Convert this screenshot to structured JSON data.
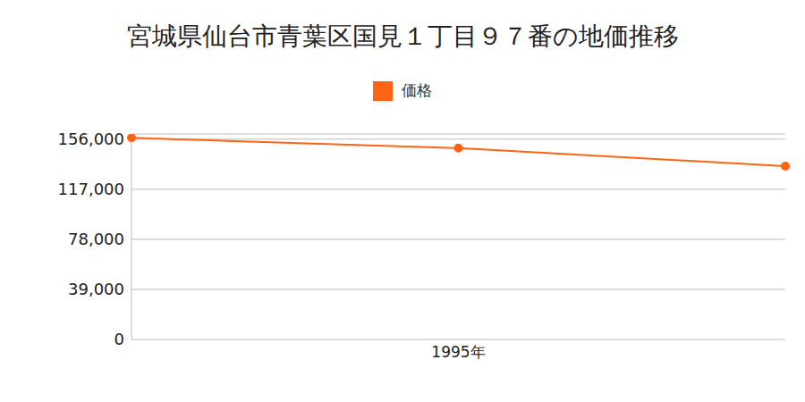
{
  "chart_data": {
    "type": "line",
    "title": "宮城県仙台市青葉区国見１丁目９７番の地価推移",
    "categories": [
      null,
      "1995年",
      null
    ],
    "series": [
      {
        "name": "価格",
        "color": "#ff6314",
        "values": [
          157000,
          149000,
          135000
        ],
        "marker": "circle"
      }
    ],
    "ylim": [
      0,
      160000
    ],
    "yticks": [
      0,
      {
        "value": 39000,
        "label": "39,000"
      },
      {
        "value": 78000,
        "label": "78,000"
      },
      {
        "value": 117000,
        "label": "117,000"
      },
      {
        "value": 156000,
        "label": "156,000"
      }
    ],
    "grid": true,
    "legend": "top"
  }
}
